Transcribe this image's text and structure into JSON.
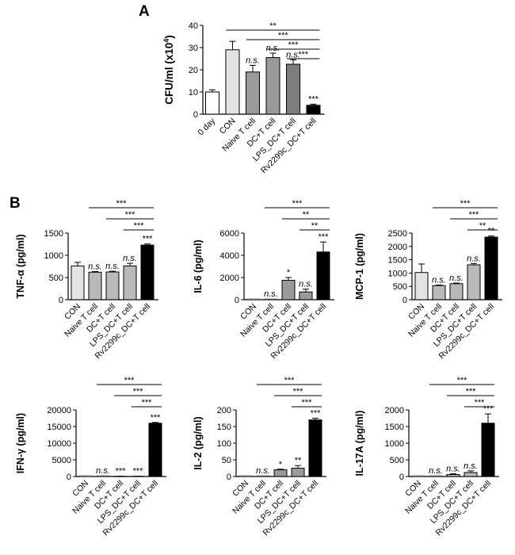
{
  "panel_a_letter": "A",
  "panel_b_letter": "B",
  "colors": {
    "white": "#ffffff",
    "light_gray": "#e3e3e3",
    "mid_gray": "#b9b9b9",
    "dark_gray": "#9a9a9a",
    "darker_gray": "#7d7d7d",
    "black": "#000000"
  },
  "chart_data": [
    {
      "id": "A",
      "type": "bar",
      "title": "",
      "xlabel": "",
      "ylabel_prefix": "CFU/ml (x10",
      "ylabel_sup": "4",
      "ylabel_suffix": ")",
      "ylim": [
        0,
        40
      ],
      "yticks": [
        0,
        10,
        20,
        30,
        40
      ],
      "categories": [
        "0 day",
        "CON",
        "Naive T cell",
        "DC+T cell",
        "LPS_DC+T cell",
        "Rv2299c_DC+T cell"
      ],
      "values": [
        10,
        29,
        19,
        25.5,
        22.5,
        4
      ],
      "errors": [
        1,
        3.8,
        3,
        2,
        2,
        0.5
      ],
      "bar_colors": [
        "#ffffff",
        "#e3e3e3",
        "#9a9a9a",
        "#9a9a9a",
        "#7d7d7d",
        "#000000"
      ],
      "annotations": [
        "",
        "",
        "n.s.",
        "n.s.",
        "n.s.",
        "***"
      ],
      "brackets": [
        {
          "from": 1,
          "label": "**"
        },
        {
          "from": 2,
          "label": "***"
        },
        {
          "from": 3,
          "label": "***"
        },
        {
          "from": 4,
          "label": "***"
        }
      ]
    },
    {
      "id": "TNF",
      "type": "bar",
      "ylabel": "TNF-α  (pg/ml)",
      "ylim": [
        0,
        1500
      ],
      "yticks": [
        0,
        500,
        1000,
        1500
      ],
      "categories": [
        "CON",
        "Naive T cell",
        "DC+T cell",
        "LPS_DC+T cell",
        "Rv2299c_DC+T cell"
      ],
      "values": [
        760,
        620,
        625,
        760,
        1230
      ],
      "errors": [
        80,
        15,
        15,
        60,
        25
      ],
      "bar_colors": [
        "#e3e3e3",
        "#b9b9b9",
        "#b9b9b9",
        "#b9b9b9",
        "#000000"
      ],
      "annotations": [
        "",
        "n.s.",
        "n.s.",
        "n.s.",
        "***"
      ],
      "brackets": [
        {
          "from": 1,
          "label": "***"
        },
        {
          "from": 2,
          "label": "***"
        },
        {
          "from": 3,
          "label": "***"
        }
      ]
    },
    {
      "id": "IL6",
      "type": "bar",
      "ylabel": "IL-6 (pg/ml)",
      "ylim": [
        0,
        6000
      ],
      "yticks": [
        0,
        2000,
        4000,
        6000
      ],
      "categories": [
        "CON",
        "Naive T cell",
        "DC+T cell",
        "LPS_DC+T cell",
        "Rv2299c_DC+T cell"
      ],
      "values": [
        0,
        0,
        1750,
        700,
        4300
      ],
      "errors": [
        0,
        0,
        250,
        250,
        900
      ],
      "bar_colors": [
        "#e3e3e3",
        "#b9b9b9",
        "#9a9a9a",
        "#9a9a9a",
        "#000000"
      ],
      "annotations": [
        "",
        "n.s.",
        "*",
        "n.s.",
        "***"
      ],
      "brackets": [
        {
          "from": 1,
          "label": "***"
        },
        {
          "from": 2,
          "label": "**"
        },
        {
          "from": 3,
          "label": "**"
        }
      ]
    },
    {
      "id": "MCP1",
      "type": "bar",
      "ylabel": "MCP-1 (pg/ml)",
      "ylim": [
        0,
        2500
      ],
      "yticks": [
        0,
        500,
        1000,
        1500,
        2000,
        2500
      ],
      "categories": [
        "CON",
        "Naive T cell",
        "DC+T cell",
        "LPS_DC+T cell",
        "Rv2299c_DC+T cell"
      ],
      "values": [
        1020,
        530,
        600,
        1310,
        2350
      ],
      "errors": [
        320,
        20,
        25,
        50,
        40
      ],
      "bar_colors": [
        "#e3e3e3",
        "#b9b9b9",
        "#b9b9b9",
        "#b9b9b9",
        "#000000"
      ],
      "annotations": [
        "",
        "n.s.",
        "n.s.",
        "n.s.",
        "**"
      ],
      "brackets": [
        {
          "from": 1,
          "label": "***"
        },
        {
          "from": 2,
          "label": "***"
        },
        {
          "from": 3,
          "label": "**"
        }
      ]
    },
    {
      "id": "IFNG",
      "type": "bar",
      "ylabel": "IFN-γ (pg/ml)",
      "ylim": [
        0,
        20000
      ],
      "yticks": [
        0,
        5000,
        10000,
        15000,
        20000
      ],
      "categories": [
        "CON",
        "Naive T cell",
        "DC+T cell",
        "LPS_DC+T cell",
        "Rv2299c_DC+T cell"
      ],
      "values": [
        0,
        0,
        60,
        60,
        16000
      ],
      "errors": [
        0,
        0,
        10,
        10,
        250
      ],
      "bar_colors": [
        "#e3e3e3",
        "#b9b9b9",
        "#9a9a9a",
        "#9a9a9a",
        "#000000"
      ],
      "annotations": [
        "",
        "n.s.",
        "***",
        "***",
        "***"
      ],
      "brackets": [
        {
          "from": 1,
          "label": "***"
        },
        {
          "from": 2,
          "label": "***"
        },
        {
          "from": 3,
          "label": "***"
        }
      ]
    },
    {
      "id": "IL2",
      "type": "bar",
      "ylabel": "IL-2 (pg/ml)",
      "ylim": [
        0,
        200
      ],
      "yticks": [
        0,
        50,
        100,
        150,
        200
      ],
      "categories": [
        "CON",
        "Naive T cell",
        "DC+T cell",
        "LPS_DC+T cell",
        "Rv2299c_DC+T cell"
      ],
      "values": [
        0,
        0,
        20,
        25,
        170
      ],
      "errors": [
        0,
        0,
        2,
        8,
        5
      ],
      "bar_colors": [
        "#e3e3e3",
        "#b9b9b9",
        "#9a9a9a",
        "#9a9a9a",
        "#000000"
      ],
      "annotations": [
        "",
        "n.s.",
        "*",
        "**",
        "***"
      ],
      "brackets": [
        {
          "from": 1,
          "label": "***"
        },
        {
          "from": 2,
          "label": "***"
        },
        {
          "from": 3,
          "label": "***"
        }
      ]
    },
    {
      "id": "IL17A",
      "type": "bar",
      "ylabel": "IL-17A (pg/ml)",
      "ylim": [
        0,
        2000
      ],
      "yticks": [
        0,
        500,
        1000,
        1500,
        2000
      ],
      "categories": [
        "CON",
        "Naive T cell",
        "DC+T cell",
        "LPS_DC+T cell",
        "Rv2299c_DC+T cell"
      ],
      "values": [
        0,
        0,
        60,
        120,
        1600
      ],
      "errors": [
        0,
        0,
        20,
        50,
        280
      ],
      "bar_colors": [
        "#e3e3e3",
        "#b9b9b9",
        "#b9b9b9",
        "#b9b9b9",
        "#000000"
      ],
      "annotations": [
        "",
        "n.s.",
        "n.s.",
        "n.s.",
        "***"
      ],
      "brackets": [
        {
          "from": 1,
          "label": "***"
        },
        {
          "from": 2,
          "label": "***"
        },
        {
          "from": 3,
          "label": "***"
        }
      ]
    }
  ]
}
